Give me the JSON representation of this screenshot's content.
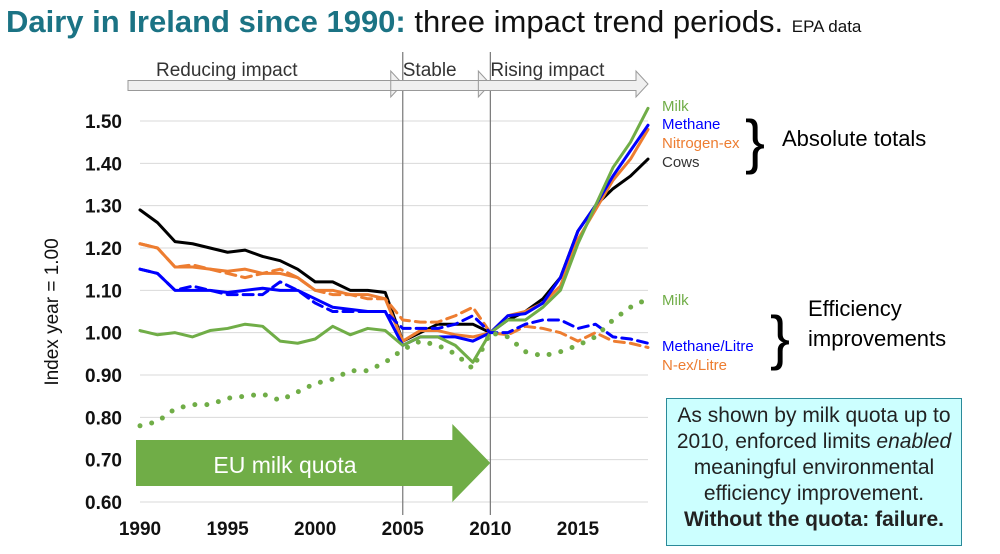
{
  "title": {
    "bold": "Dairy in Ireland since 1990:",
    "rest": "three impact trend periods.",
    "source": "EPA data"
  },
  "periods": [
    {
      "label": "Reducing impact",
      "from": 1990,
      "to": 2005
    },
    {
      "label": "Stable",
      "from": 2005,
      "to": 2010
    },
    {
      "label": "Rising impact",
      "from": 2010,
      "to": 2019
    }
  ],
  "quota": {
    "label": "EU milk quota",
    "from": 1990,
    "to": 2010,
    "color": "#70ad47"
  },
  "groups": {
    "absolute": "Absolute totals",
    "efficiency_line1": "Efficiency",
    "efficiency_line2": "improvements"
  },
  "note": {
    "line1": "As shown by milk quota up to 2010, enforced limits ",
    "emph": "enabled",
    "line2": " meaningful environmental efficiency improvement.",
    "bold": "Without the quota: failure."
  },
  "chart_data": {
    "type": "line",
    "ylabel": "Index year = 1.00",
    "xlabel": "",
    "xlim": [
      1990,
      2019
    ],
    "ylim": [
      0.6,
      1.6
    ],
    "xticks": [
      "1990",
      "1995",
      "2000",
      "2005",
      "2010",
      "2015"
    ],
    "yticks": [
      "0.60",
      "0.70",
      "0.80",
      "0.90",
      "1.00",
      "1.10",
      "1.20",
      "1.30",
      "1.40",
      "1.50"
    ],
    "grid": "horizontal",
    "x_start": 1990,
    "series": [
      {
        "name": "Cows",
        "group": "absolute",
        "color": "#000000",
        "style": "solid",
        "values": [
          1.29,
          1.26,
          1.215,
          1.21,
          1.2,
          1.19,
          1.195,
          1.18,
          1.17,
          1.15,
          1.12,
          1.12,
          1.1,
          1.1,
          1.095,
          0.98,
          1.0,
          1.02,
          1.02,
          1.02,
          1.0,
          1.03,
          1.05,
          1.08,
          1.13,
          1.24,
          1.3,
          1.34,
          1.37,
          1.41
        ]
      },
      {
        "name": "Nitrogen-ex",
        "group": "absolute",
        "color": "#ed7d31",
        "style": "solid",
        "values": [
          1.21,
          1.2,
          1.155,
          1.155,
          1.15,
          1.145,
          1.15,
          1.14,
          1.14,
          1.13,
          1.1,
          1.1,
          1.09,
          1.09,
          1.08,
          0.98,
          1.005,
          1.005,
          0.995,
          0.99,
          1.0,
          1.04,
          1.05,
          1.07,
          1.11,
          1.22,
          1.29,
          1.36,
          1.41,
          1.48
        ]
      },
      {
        "name": "Methane",
        "group": "absolute",
        "color": "#0000ff",
        "style": "solid",
        "values": [
          1.15,
          1.14,
          1.1,
          1.1,
          1.1,
          1.095,
          1.1,
          1.105,
          1.1,
          1.1,
          1.08,
          1.06,
          1.055,
          1.05,
          1.05,
          0.97,
          0.99,
          0.99,
          0.99,
          0.98,
          1.0,
          1.04,
          1.045,
          1.07,
          1.13,
          1.24,
          1.3,
          1.37,
          1.43,
          1.49
        ]
      },
      {
        "name": "Milk",
        "group": "absolute",
        "color": "#70ad47",
        "style": "solid",
        "values": [
          1.005,
          0.995,
          1.0,
          0.99,
          1.005,
          1.01,
          1.02,
          1.015,
          0.98,
          0.975,
          0.985,
          1.015,
          0.995,
          1.01,
          1.005,
          0.97,
          0.99,
          0.99,
          0.97,
          0.93,
          1.0,
          1.03,
          1.03,
          1.06,
          1.1,
          1.21,
          1.3,
          1.39,
          1.45,
          1.53
        ]
      },
      {
        "name": "N-ex/Litre",
        "group": "efficiency",
        "color": "#ed7d31",
        "style": "dashed",
        "values": [
          1.21,
          1.2,
          1.155,
          1.16,
          1.15,
          1.14,
          1.13,
          1.14,
          1.15,
          1.13,
          1.1,
          1.09,
          1.09,
          1.08,
          1.08,
          1.03,
          1.025,
          1.025,
          1.04,
          1.06,
          1.0,
          0.995,
          1.015,
          1.01,
          1.0,
          0.98,
          1.0,
          0.98,
          0.975,
          0.965
        ]
      },
      {
        "name": "Methane/Litre",
        "group": "efficiency",
        "color": "#0000ff",
        "style": "dashed",
        "values": [
          1.15,
          1.14,
          1.1,
          1.11,
          1.1,
          1.09,
          1.09,
          1.09,
          1.12,
          1.1,
          1.07,
          1.05,
          1.05,
          1.05,
          1.05,
          1.01,
          1.01,
          1.01,
          1.02,
          1.04,
          1.0,
          1.0,
          1.02,
          1.03,
          1.03,
          1.01,
          1.02,
          0.99,
          0.985,
          0.975
        ]
      },
      {
        "name": "Milk",
        "group": "efficiency",
        "color": "#70ad47",
        "style": "dotted",
        "values": [
          0.78,
          0.79,
          0.82,
          0.83,
          0.83,
          0.845,
          0.85,
          0.855,
          0.84,
          0.86,
          0.88,
          0.89,
          0.91,
          0.91,
          0.93,
          0.96,
          0.98,
          0.97,
          0.95,
          0.915,
          1.0,
          0.99,
          0.955,
          0.945,
          0.955,
          0.97,
          0.99,
          1.03,
          1.06,
          1.08
        ]
      }
    ]
  }
}
